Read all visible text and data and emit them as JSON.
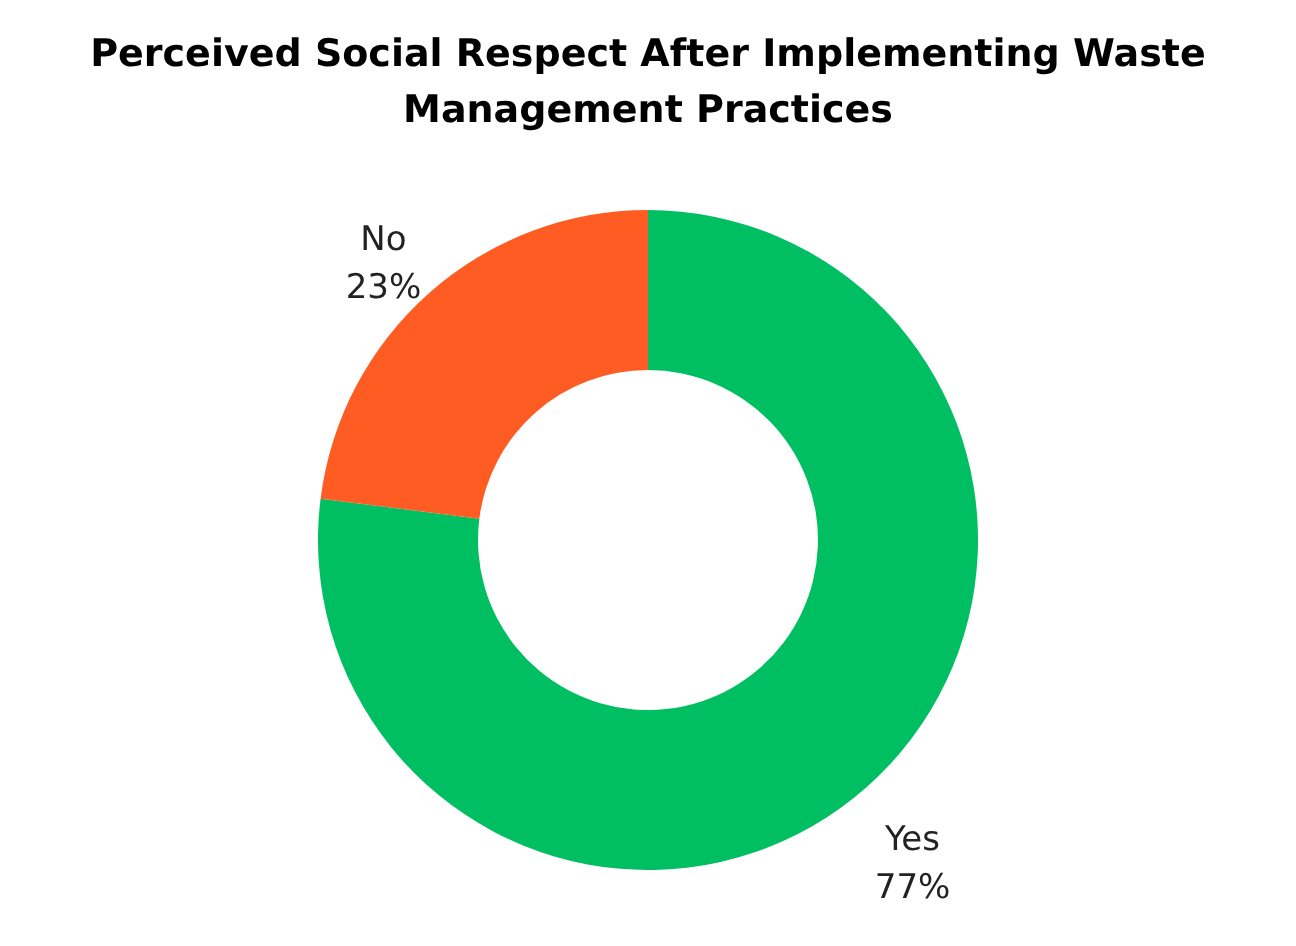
{
  "chart_data": {
    "type": "donut",
    "title": "Perceived Social Respect After Implementing Waste Management Practices",
    "categories": [
      "Yes",
      "No"
    ],
    "values": [
      77,
      23
    ],
    "colors": [
      "#00bf63",
      "#ff5c23"
    ],
    "value_labels": [
      "77%",
      "23%"
    ]
  }
}
